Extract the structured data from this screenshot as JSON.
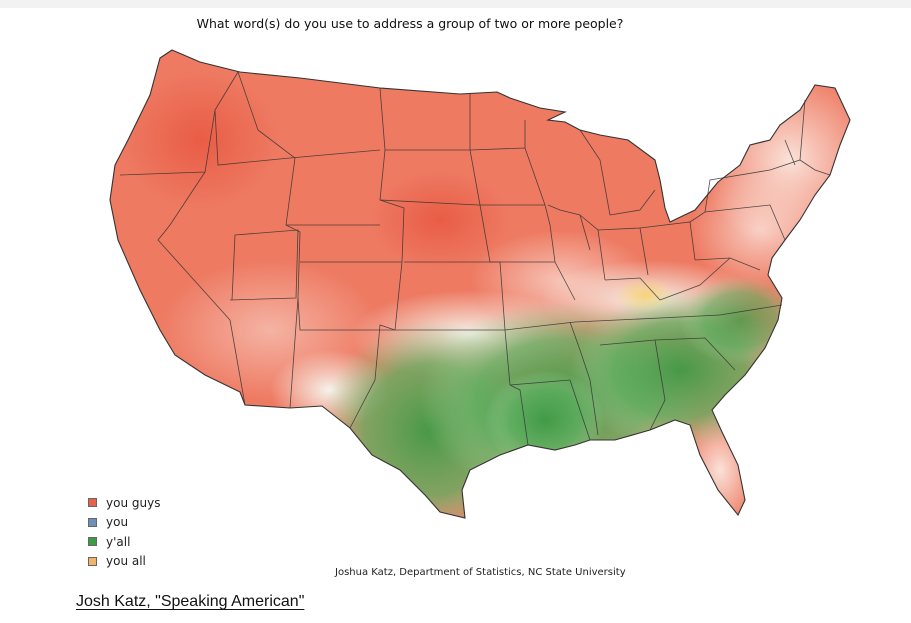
{
  "map": {
    "title": "What word(s) do you use to address a group of two or more people?",
    "credit": "Joshua Katz, Department of Statistics, NC State University",
    "legend": [
      {
        "label": "you guys",
        "color": "#e9604a"
      },
      {
        "label": "you",
        "color": "#6d8fb8"
      },
      {
        "label": "y'all",
        "color": "#3f9a45"
      },
      {
        "label": "you all",
        "color": "#f2b26a"
      }
    ]
  },
  "caption": {
    "link_text": "Josh Katz, \"Speaking American\""
  }
}
